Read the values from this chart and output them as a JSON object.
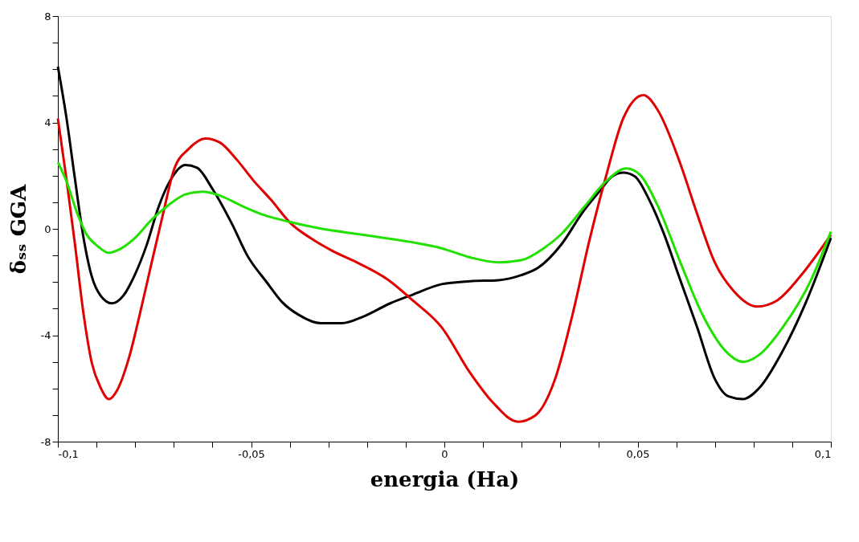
{
  "chart_data": {
    "type": "line",
    "xlabel": "energia (Ha)",
    "ylabel": "δₛₛ GGA",
    "xlim": [
      -0.1,
      0.1
    ],
    "ylim": [
      -8,
      8
    ],
    "xticks": [
      {
        "value": -0.1,
        "label": "-0,1"
      },
      {
        "value": -0.09,
        "label": null
      },
      {
        "value": -0.08,
        "label": null
      },
      {
        "value": -0.07,
        "label": null
      },
      {
        "value": -0.06,
        "label": null
      },
      {
        "value": -0.05,
        "label": "-0,05"
      },
      {
        "value": -0.04,
        "label": null
      },
      {
        "value": -0.03,
        "label": null
      },
      {
        "value": -0.02,
        "label": null
      },
      {
        "value": -0.01,
        "label": null
      },
      0,
      {
        "value": 0.01,
        "label": null
      },
      {
        "value": 0.02,
        "label": null
      },
      {
        "value": 0.03,
        "label": null
      },
      {
        "value": 0.04,
        "label": null
      },
      {
        "value": 0.05,
        "label": "0,05"
      },
      {
        "value": 0.06,
        "label": null
      },
      {
        "value": 0.07,
        "label": null
      },
      {
        "value": 0.08,
        "label": null
      },
      {
        "value": 0.09,
        "label": null
      },
      {
        "value": 0.1,
        "label": "0,1"
      }
    ],
    "yticks": [
      -8,
      {
        "value": -7,
        "label": null
      },
      {
        "value": -6,
        "label": null
      },
      {
        "value": -5,
        "label": null
      },
      -4,
      {
        "value": -3,
        "label": null
      },
      {
        "value": -2,
        "label": null
      },
      {
        "value": -1,
        "label": null
      },
      0,
      {
        "value": 1,
        "label": null
      },
      {
        "value": 2,
        "label": null
      },
      {
        "value": 3,
        "label": null
      },
      4,
      {
        "value": 5,
        "label": null
      },
      {
        "value": 6,
        "label": null
      },
      {
        "value": 7,
        "label": null
      },
      8
    ],
    "grid": false,
    "marker": "none",
    "line_style": "solid",
    "series": [
      {
        "color": "#000000",
        "x": [
          -0.1,
          -0.0978,
          -0.0956,
          -0.0934,
          -0.0912,
          -0.089,
          -0.086,
          -0.083,
          -0.08,
          -0.077,
          -0.074,
          -0.071,
          -0.067,
          -0.064,
          -0.06,
          -0.055,
          -0.051,
          -0.046,
          -0.042,
          -0.0375,
          -0.032,
          -0.0265,
          -0.021,
          -0.014,
          -0.0081,
          -0.0007,
          0.0066,
          0.014,
          0.0199,
          0.0243,
          0.0301,
          0.036,
          0.0404,
          0.0434,
          0.0463,
          0.0493,
          0.0529,
          0.0566,
          0.061,
          0.0654,
          0.0699,
          0.0735,
          0.0772,
          0.0816,
          0.0875,
          0.0934,
          0.1
        ],
        "values": [
          6.1,
          4.2,
          1.9,
          -0.3,
          -1.8,
          -2.5,
          -2.8,
          -2.5,
          -1.7,
          -0.6,
          0.8,
          1.8,
          2.4,
          2.3,
          1.5,
          0.2,
          -1.0,
          -2.0,
          -2.75,
          -3.25,
          -3.55,
          -3.55,
          -3.3,
          -2.8,
          -2.47,
          -2.08,
          -1.97,
          -1.93,
          -1.74,
          -1.46,
          -0.62,
          0.67,
          1.46,
          1.97,
          2.11,
          1.97,
          1.12,
          -0.11,
          -1.91,
          -3.7,
          -5.62,
          -6.3,
          -6.4,
          -5.96,
          -4.6,
          -2.81,
          -0.34
        ]
      },
      {
        "color": "#e00000",
        "x": [
          -0.1,
          -0.0978,
          -0.0956,
          -0.0934,
          -0.0912,
          -0.089,
          -0.0868,
          -0.0846,
          -0.0816,
          -0.0787,
          -0.0757,
          -0.0728,
          -0.0699,
          -0.0662,
          -0.0618,
          -0.0581,
          -0.0537,
          -0.0493,
          -0.0449,
          -0.0397,
          -0.0346,
          -0.0287,
          -0.0228,
          -0.0147,
          -0.0081,
          -0.0007,
          0.0066,
          0.0125,
          0.0191,
          0.0235,
          0.0287,
          0.0331,
          0.0375,
          0.0419,
          0.0463,
          0.0515,
          0.0551,
          0.061,
          0.0654,
          0.0699,
          0.075,
          0.0809,
          0.086,
          0.0926,
          0.1
        ],
        "values": [
          4.15,
          1.9,
          -0.55,
          -3.15,
          -5.05,
          -5.95,
          -6.4,
          -6.05,
          -4.85,
          -3.15,
          -1.25,
          0.55,
          2.25,
          3.0,
          3.4,
          3.25,
          2.6,
          1.8,
          1.1,
          0.2,
          -0.35,
          -0.85,
          -1.25,
          -1.9,
          -2.7,
          -3.7,
          -5.4,
          -6.52,
          -7.25,
          -7.02,
          -5.62,
          -3.26,
          -0.45,
          2.02,
          4.16,
          5.03,
          4.49,
          2.47,
          0.56,
          -1.24,
          -2.36,
          -2.92,
          -2.7,
          -1.69,
          -0.22
        ]
      },
      {
        "color": "#22e000",
        "x": [
          -0.1,
          -0.0978,
          -0.0949,
          -0.0926,
          -0.0897,
          -0.0868,
          -0.0838,
          -0.0801,
          -0.0757,
          -0.0713,
          -0.0669,
          -0.0625,
          -0.0581,
          -0.0522,
          -0.0463,
          -0.0397,
          -0.0324,
          -0.0213,
          -0.0081,
          -0.0007,
          0.0066,
          0.014,
          0.0199,
          0.0257,
          0.0301,
          0.036,
          0.0419,
          0.0471,
          0.0507,
          0.0551,
          0.061,
          0.0669,
          0.0728,
          0.0772,
          0.0816,
          0.0875,
          0.0949,
          0.1
        ],
        "values": [
          2.5,
          1.8,
          0.55,
          -0.2,
          -0.65,
          -0.9,
          -0.75,
          -0.35,
          0.35,
          0.9,
          1.3,
          1.4,
          1.25,
          0.85,
          0.5,
          0.25,
          0.02,
          -0.22,
          -0.51,
          -0.73,
          -1.07,
          -1.26,
          -1.18,
          -0.73,
          -0.22,
          0.79,
          1.8,
          2.27,
          2.02,
          0.9,
          -1.24,
          -3.26,
          -4.6,
          -5.0,
          -4.72,
          -3.71,
          -1.91,
          -0.11
        ]
      }
    ]
  }
}
